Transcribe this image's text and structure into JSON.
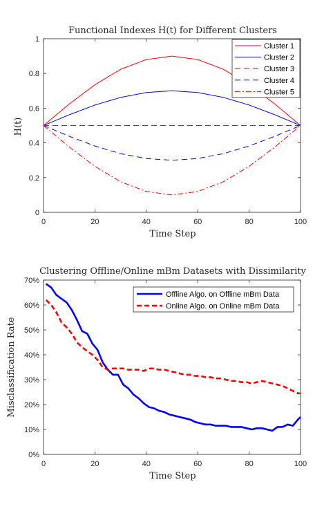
{
  "chart_data": [
    {
      "type": "line",
      "title": "Functional Indexes H(t) for Different Clusters",
      "xlabel": "Time Step",
      "ylabel": "H(t)",
      "xlim": [
        0,
        100
      ],
      "ylim": [
        0,
        1
      ],
      "xticks": [
        "0",
        "20",
        "40",
        "60",
        "80",
        "100"
      ],
      "yticks": [
        "0",
        "0.2",
        "0.4",
        "0.6",
        "0.8",
        "1"
      ],
      "legend_position": "top-right",
      "x": [
        0,
        10,
        20,
        30,
        40,
        50,
        60,
        70,
        80,
        90,
        100
      ],
      "series": [
        {
          "name": "Cluster 1",
          "color": "#ff0000",
          "dash": "solid",
          "values": [
            0.5,
            0.624,
            0.735,
            0.824,
            0.88,
            0.9,
            0.88,
            0.824,
            0.735,
            0.624,
            0.5
          ]
        },
        {
          "name": "Cluster 2",
          "color": "#0000ff",
          "dash": "solid",
          "values": [
            0.5,
            0.562,
            0.618,
            0.662,
            0.69,
            0.7,
            0.69,
            0.662,
            0.618,
            0.562,
            0.5
          ]
        },
        {
          "name": "Cluster 3",
          "color": "#ff0000",
          "dash": "dashed",
          "values": [
            0.5,
            0.5,
            0.5,
            0.5,
            0.5,
            0.5,
            0.5,
            0.5,
            0.5,
            0.5,
            0.5
          ]
        },
        {
          "name": "Cluster 4",
          "color": "#0000ff",
          "dash": "dashed",
          "values": [
            0.5,
            0.438,
            0.382,
            0.338,
            0.31,
            0.3,
            0.31,
            0.338,
            0.382,
            0.438,
            0.5
          ]
        },
        {
          "name": "Cluster 5",
          "color": "#ff0000",
          "dash": "dashdot",
          "values": [
            0.5,
            0.376,
            0.265,
            0.176,
            0.12,
            0.1,
            0.12,
            0.176,
            0.265,
            0.376,
            0.5
          ]
        }
      ]
    },
    {
      "type": "line",
      "title": "Clustering Offline/Online mBm Datasets with Dissimilarity",
      "xlabel": "Time Step",
      "ylabel": "Misclassification Rate",
      "xlim": [
        0,
        100
      ],
      "ylim": [
        0,
        70
      ],
      "xticks": [
        "0",
        "20",
        "40",
        "60",
        "80",
        "100"
      ],
      "yticks": [
        "0%",
        "10%",
        "20%",
        "30%",
        "40%",
        "50%",
        "60%",
        "70%"
      ],
      "legend_position": "top-right",
      "x": [
        1,
        3,
        5,
        7,
        9,
        11,
        13,
        15,
        17,
        19,
        21,
        23,
        25,
        27,
        29,
        31,
        33,
        35,
        37,
        39,
        41,
        43,
        45,
        47,
        49,
        51,
        53,
        55,
        57,
        59,
        61,
        63,
        65,
        67,
        69,
        71,
        73,
        75,
        77,
        79,
        81,
        83,
        85,
        87,
        89,
        91,
        93,
        95,
        97,
        99,
        100
      ],
      "series": [
        {
          "name": "Offline Algo. on Offline mBm Data",
          "color": "#0000ff",
          "dash": "solid",
          "values": [
            68.5,
            67,
            64,
            62.5,
            61,
            58,
            54,
            49.5,
            48.5,
            44.5,
            42,
            37,
            34,
            32,
            32,
            28,
            26.5,
            24,
            22.5,
            20.5,
            19,
            18.5,
            17.5,
            17,
            16,
            15.5,
            15,
            14.5,
            14,
            13,
            12.5,
            12,
            12,
            11.5,
            11.5,
            11.5,
            11,
            11,
            11,
            10.5,
            10,
            10.5,
            10.5,
            10,
            9.5,
            11,
            11,
            12,
            11.5,
            14,
            15
          ]
        },
        {
          "name": "Online Algo. on Online mBm Data",
          "color": "#ff0000",
          "dash": "dashed",
          "values": [
            62,
            60,
            57,
            53,
            51,
            48.5,
            45,
            43,
            41.5,
            40,
            38,
            35,
            34,
            34.5,
            34.5,
            34.5,
            34,
            34,
            34,
            33.5,
            34.5,
            34.5,
            34,
            34,
            33.5,
            33,
            32.5,
            32,
            32,
            31.5,
            31.5,
            31,
            31,
            30.5,
            30.5,
            30,
            29.5,
            29.5,
            29,
            29,
            28.5,
            29,
            29.5,
            29,
            28.5,
            28,
            27.5,
            26.5,
            25.5,
            24.5,
            24.5
          ]
        }
      ]
    }
  ]
}
